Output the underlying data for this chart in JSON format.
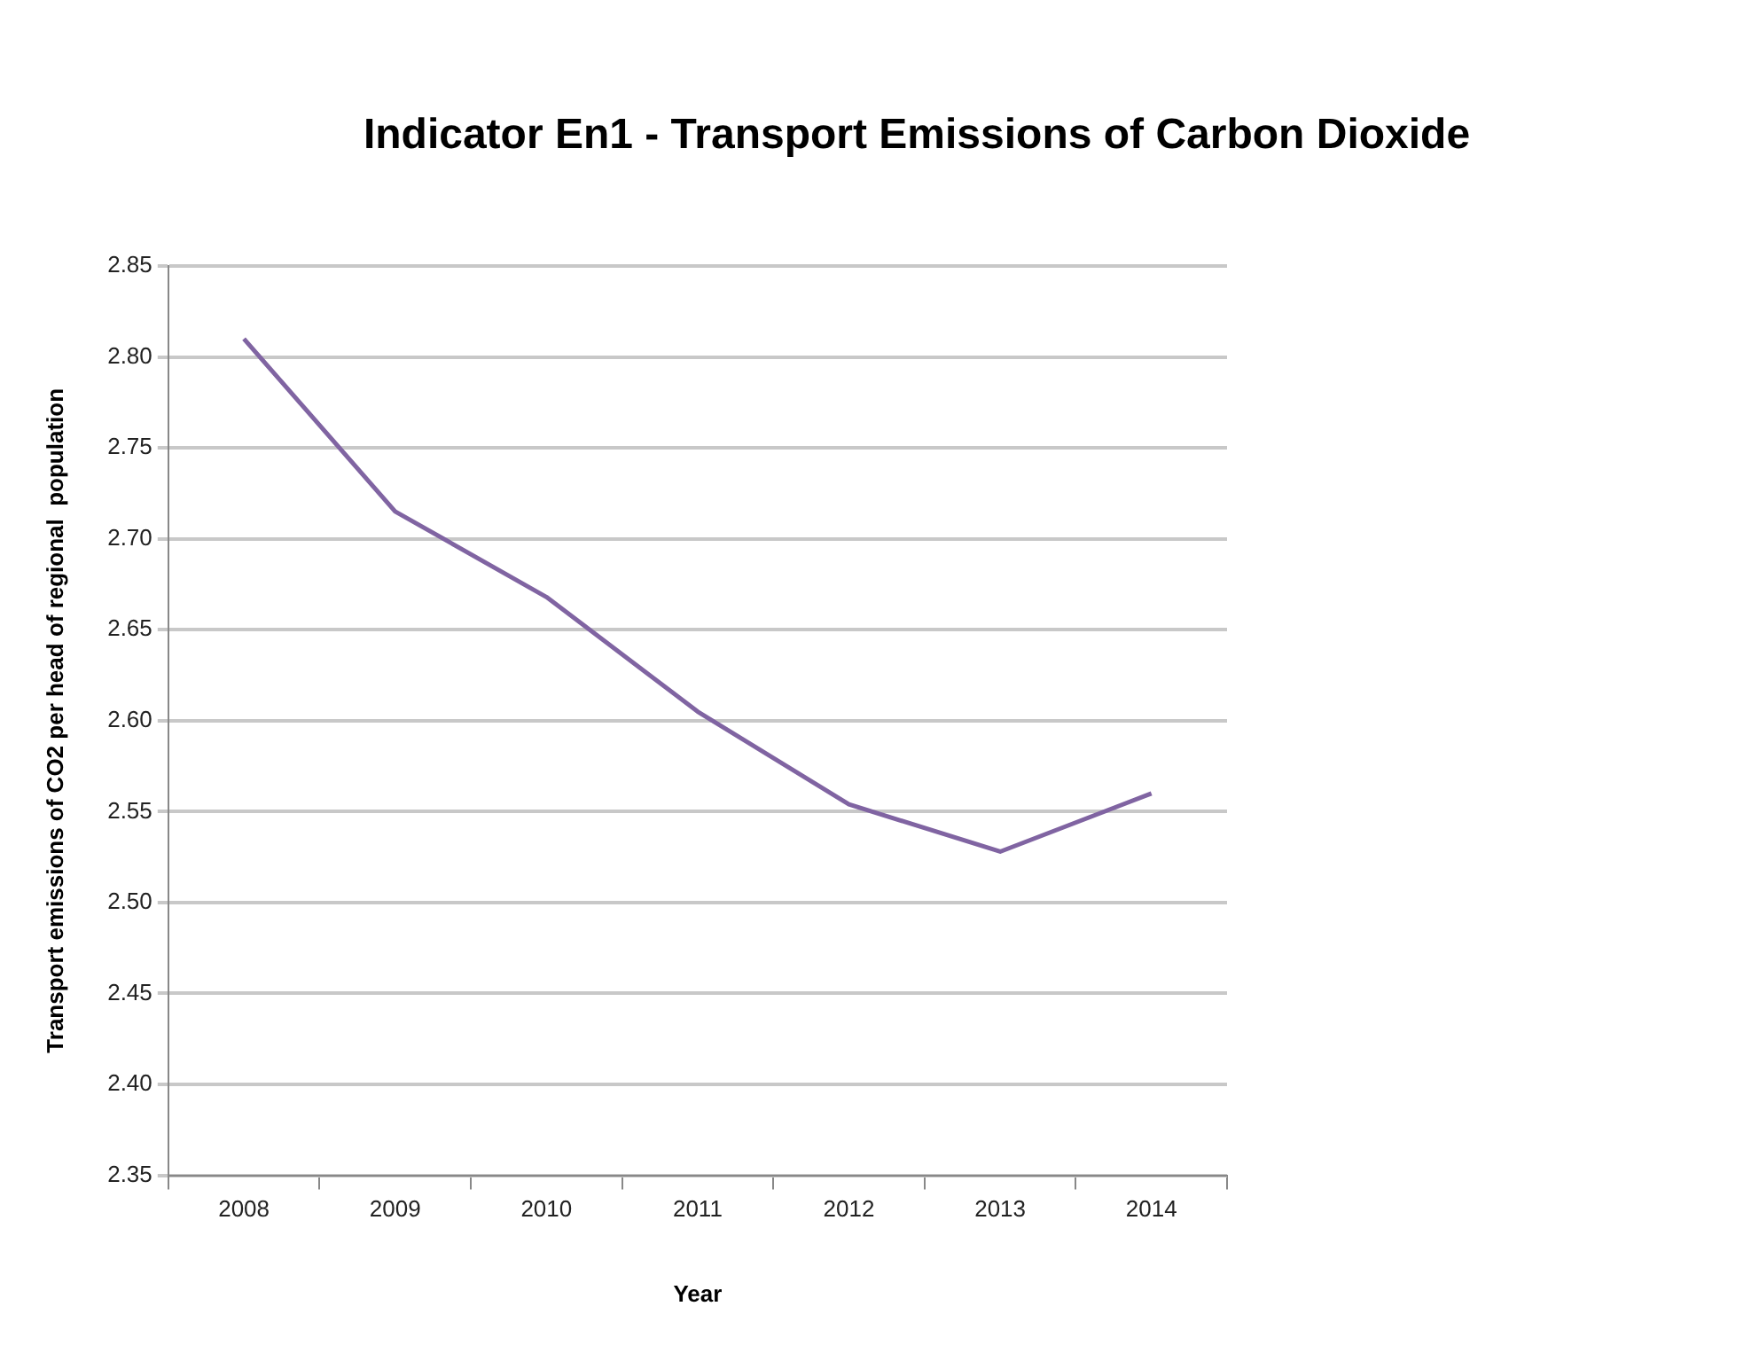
{
  "chart_data": {
    "type": "line",
    "title": "Indicator En1 - Transport Emissions of Carbon Dioxide",
    "xlabel": "Year",
    "ylabel": "Transport emissions of CO2 per head of regional  population",
    "categories": [
      "2008",
      "2009",
      "2010",
      "2011",
      "2012",
      "2013",
      "2014"
    ],
    "series": [
      {
        "color": "#8064a2",
        "values": [
          2.81,
          2.715,
          2.668,
          2.605,
          2.554,
          2.528,
          2.56
        ]
      }
    ],
    "ylim": [
      2.35,
      2.85
    ],
    "yticks": [
      2.35,
      {
        "value": 2.4,
        "label": "2.40"
      },
      2.45,
      {
        "value": 2.5,
        "label": "2.50"
      },
      2.55,
      {
        "value": 2.6,
        "label": "2.60"
      },
      2.65,
      {
        "value": 2.7,
        "label": "2.70"
      },
      2.75,
      {
        "value": 2.8,
        "label": "2.80"
      },
      2.85
    ],
    "grid": "y",
    "legend": false,
    "marker": "none",
    "line_style": "solid"
  }
}
